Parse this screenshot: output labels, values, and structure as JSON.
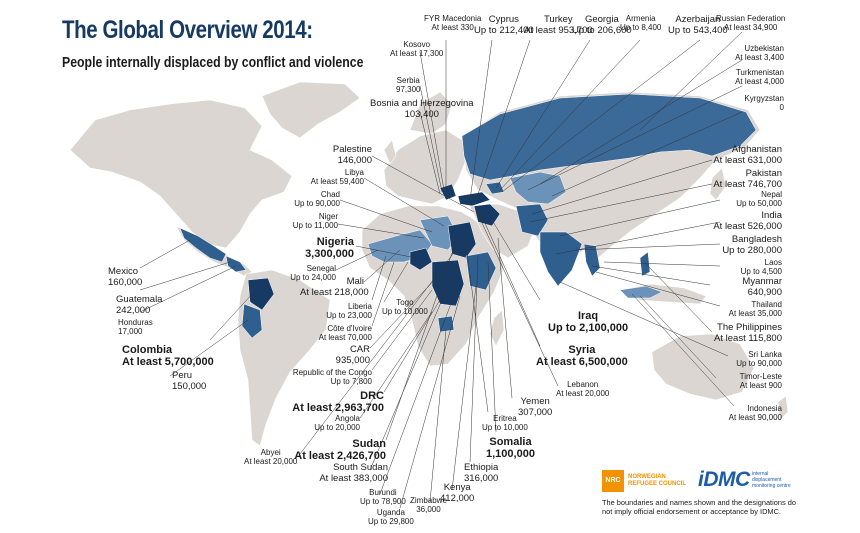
{
  "title": "The Global Overview 2014:",
  "subtitle": "People internally displaced by conflict and violence",
  "colors": {
    "land": "#dbd6d2",
    "idp_dark": "#163a63",
    "idp_mid": "#2f5f8e",
    "idp_light": "#6b93b9",
    "text_title": "#163a63",
    "leader": "#333333"
  },
  "labels": [
    {
      "name": "FYR Macedonia",
      "value": "At least 330"
    },
    {
      "name": "Kosovo",
      "value": "At least 17,300"
    },
    {
      "name": "Serbia",
      "value": "97,300"
    },
    {
      "name": "Bosnia and Herzegovina",
      "value": "103,400"
    },
    {
      "name": "Cyprus",
      "value": "Up to 212,400"
    },
    {
      "name": "Turkey",
      "value": "At least 953,700"
    },
    {
      "name": "Georgia",
      "value": "Up to 206,600"
    },
    {
      "name": "Armenia",
      "value": "Up to 8,400"
    },
    {
      "name": "Azerbaijan",
      "value": "Up to 543,400"
    },
    {
      "name": "Russian Federation",
      "value": "At least 34,900"
    },
    {
      "name": "Uzbekistan",
      "value": "At least 3,400"
    },
    {
      "name": "Turkmenistan",
      "value": "At least 4,000"
    },
    {
      "name": "Kyrgyzstan",
      "value": "0"
    },
    {
      "name": "Afghanistan",
      "value": "At least 631,000"
    },
    {
      "name": "Pakistan",
      "value": "At least 746,700"
    },
    {
      "name": "Nepal",
      "value": "Up to 50,000"
    },
    {
      "name": "India",
      "value": "At least 526,000"
    },
    {
      "name": "Bangladesh",
      "value": "Up to 280,000"
    },
    {
      "name": "Laos",
      "value": "Up to 4,500"
    },
    {
      "name": "Myanmar",
      "value": "640,900"
    },
    {
      "name": "Thailand",
      "value": "At least 35,000"
    },
    {
      "name": "The Philippines",
      "value": "At least 115,800"
    },
    {
      "name": "Sri Lanka",
      "value": "Up to 90,000"
    },
    {
      "name": "Timor-Leste",
      "value": "At least 900"
    },
    {
      "name": "Indonesia",
      "value": "At least 90,000"
    },
    {
      "name": "Palestine",
      "value": "146,000"
    },
    {
      "name": "Libya",
      "value": "At least 59,400"
    },
    {
      "name": "Chad",
      "value": "Up to 90,000"
    },
    {
      "name": "Niger",
      "value": "Up to 11,000"
    },
    {
      "name": "Nigeria",
      "value": "3,300,000"
    },
    {
      "name": "Senegal",
      "value": "Up to 24,000"
    },
    {
      "name": "Mali",
      "value": "At least 218,000"
    },
    {
      "name": "Liberia",
      "value": "Up to 23,000"
    },
    {
      "name": "Togo",
      "value": "Up to 10,000"
    },
    {
      "name": "Côte d'Ivoire",
      "value": "At least 70,000"
    },
    {
      "name": "CAR",
      "value": "935,000"
    },
    {
      "name": "Republic of the Congo",
      "value": "Up to 7,800"
    },
    {
      "name": "DRC",
      "value": "At least 2,963,700"
    },
    {
      "name": "Angola",
      "value": "Up to 20,000"
    },
    {
      "name": "Sudan",
      "value": "At least 2,426,700"
    },
    {
      "name": "Abyei",
      "value": "At least 20,000"
    },
    {
      "name": "South Sudan",
      "value": "At least 383,000"
    },
    {
      "name": "Burundi",
      "value": "Up to 78,900"
    },
    {
      "name": "Uganda",
      "value": "Up to 29,800"
    },
    {
      "name": "Zimbabwe",
      "value": "36,000"
    },
    {
      "name": "Kenya",
      "value": "412,000"
    },
    {
      "name": "Ethiopia",
      "value": "316,000"
    },
    {
      "name": "Somalia",
      "value": "1,100,000"
    },
    {
      "name": "Eritrea",
      "value": "Up to 10,000"
    },
    {
      "name": "Yemen",
      "value": "307,000"
    },
    {
      "name": "Lebanon",
      "value": "At least 20,000"
    },
    {
      "name": "Syria",
      "value": "At least 6,500,000"
    },
    {
      "name": "Iraq",
      "value": "Up to 2,100,000"
    },
    {
      "name": "Mexico",
      "value": "160,000"
    },
    {
      "name": "Guatemala",
      "value": "242,000"
    },
    {
      "name": "Honduras",
      "value": "17,000"
    },
    {
      "name": "Colombia",
      "value": "At least 5,700,000"
    },
    {
      "name": "Peru",
      "value": "150,000"
    }
  ],
  "logos": {
    "nrc_mark": "NRC",
    "nrc_text": "NORWEGIAN REFUGEE COUNCIL",
    "idmc_mark": "iDMC",
    "idmc_text": "internal displacement monitoring centre"
  },
  "disclaimer": "The boundaries and names shown and the designations do not imply official endorsement or acceptance by IDMC."
}
